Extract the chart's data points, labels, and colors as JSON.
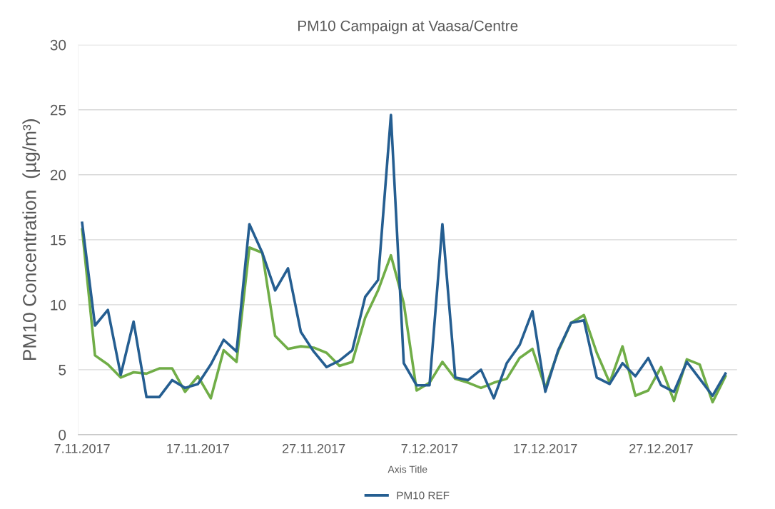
{
  "chart_data": {
    "type": "line",
    "title": "PM10 Campaign at Vaasa/Centre",
    "xlabel": "Axis Title",
    "ylabel": "PM10 Concentration  (µg/m³)",
    "categories": [
      "7.11.2017",
      null,
      null,
      null,
      null,
      null,
      null,
      null,
      null,
      "17.11.2017",
      null,
      null,
      null,
      null,
      null,
      null,
      null,
      null,
      "27.11.2017",
      null,
      null,
      null,
      null,
      null,
      null,
      null,
      null,
      "7.12.2017",
      null,
      null,
      null,
      null,
      null,
      null,
      null,
      null,
      "17.12.2017",
      null,
      null,
      null,
      null,
      null,
      null,
      null,
      null,
      "27.12.2017",
      null,
      null,
      null,
      null,
      null
    ],
    "series": [
      {
        "color": "#70ad47",
        "values": [
          15.8,
          6.1,
          5.4,
          4.4,
          4.8,
          4.7,
          5.1,
          5.1,
          3.3,
          4.5,
          2.8,
          6.5,
          5.6,
          14.4,
          14.0,
          7.6,
          6.6,
          6.8,
          6.7,
          6.3,
          5.3,
          5.6,
          9.0,
          11.1,
          13.8,
          10.1,
          3.4,
          4.0,
          5.6,
          4.3,
          4.0,
          3.6,
          4.0,
          4.3,
          5.9,
          6.6,
          3.6,
          6.4,
          8.6,
          9.2,
          6.3,
          4.0,
          6.8,
          3.0,
          3.4,
          5.2,
          2.6,
          5.8,
          5.4,
          2.5,
          4.5
        ]
      },
      {
        "name": "PM10 REF",
        "color": "#255e91",
        "values": [
          16.3,
          8.4,
          9.6,
          4.6,
          8.7,
          2.9,
          2.9,
          4.2,
          3.6,
          3.9,
          5.4,
          7.3,
          6.4,
          16.2,
          14.0,
          11.1,
          12.8,
          7.9,
          6.4,
          5.2,
          5.7,
          6.5,
          10.6,
          11.9,
          24.6,
          5.5,
          3.8,
          3.8,
          16.2,
          4.4,
          4.2,
          5.0,
          2.8,
          5.5,
          6.9,
          9.5,
          3.3,
          6.5,
          8.6,
          8.8,
          4.4,
          3.9,
          5.5,
          4.5,
          5.9,
          3.8,
          3.3,
          5.6,
          4.3,
          3.0,
          4.7
        ]
      }
    ],
    "ylim": [
      0,
      30
    ],
    "yticks": [
      0,
      5,
      10,
      15,
      20,
      25,
      30
    ],
    "grid": "y",
    "legend": "bottom",
    "marker": "none",
    "line_style": "solid"
  }
}
